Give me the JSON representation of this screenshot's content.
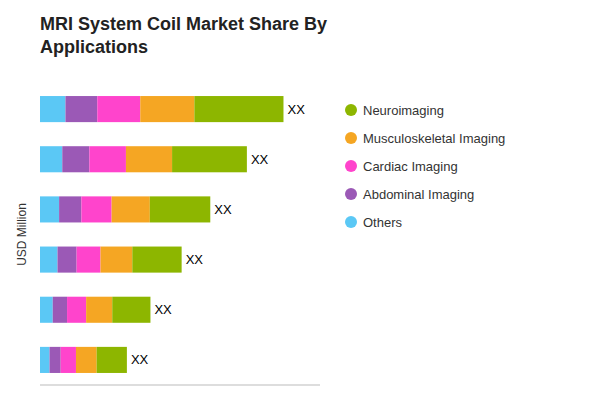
{
  "chart_data": {
    "type": "bar",
    "orientation": "horizontal",
    "stacked": true,
    "title": "MRI System Coil Market Share By\nApplications",
    "ylabel": "USD Million",
    "categories": [
      null,
      null,
      null,
      null,
      null,
      null
    ],
    "series": [
      {
        "name": "Others",
        "color": "#5BC8F5",
        "values": [
          0.08,
          0.07,
          0.06,
          0.055,
          0.04,
          0.03
        ]
      },
      {
        "name": "Abdominal Imaging",
        "color": "#9B59B6",
        "values": [
          0.1,
          0.085,
          0.07,
          0.06,
          0.045,
          0.035
        ]
      },
      {
        "name": "Cardiac Imaging",
        "color": "#FF44CC",
        "values": [
          0.135,
          0.115,
          0.095,
          0.075,
          0.06,
          0.048
        ]
      },
      {
        "name": "Musculoskeletal Imaging",
        "color": "#F5A623",
        "values": [
          0.17,
          0.145,
          0.12,
          0.1,
          0.082,
          0.065
        ]
      },
      {
        "name": "Neuroimaging",
        "color": "#8DB600",
        "values": [
          0.28,
          0.235,
          0.19,
          0.155,
          0.12,
          0.095
        ]
      }
    ],
    "annotations": [
      "XX",
      "XX",
      "XX",
      "XX",
      "XX",
      "XX"
    ],
    "xlim": [
      0,
      0.87975
    ],
    "tick_labels": false,
    "grid": false,
    "legend": "right"
  }
}
